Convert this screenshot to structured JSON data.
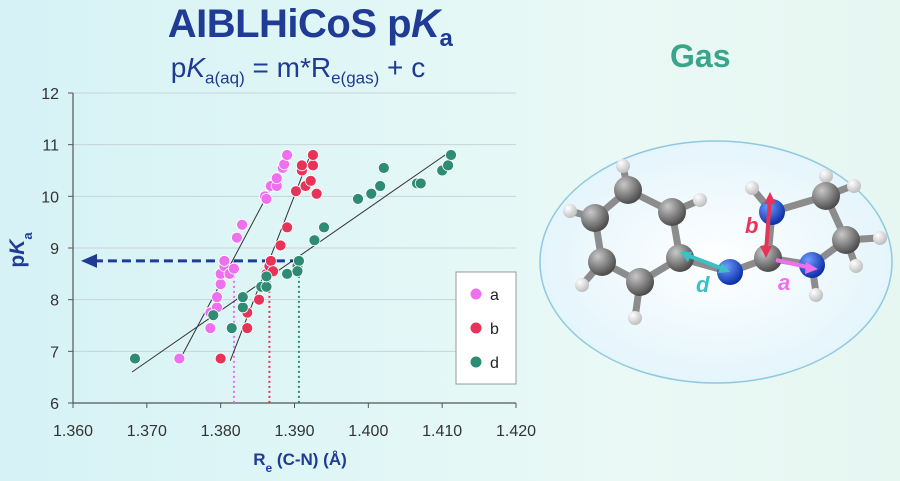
{
  "header": {
    "title_main": "AIBLHiCoS p",
    "title_K": "K",
    "title_sub": "a",
    "eq_p": "p",
    "eq_K": "K",
    "eq_sub1": "a(aq)",
    "eq_mid": " = m*R",
    "eq_sub2": "e(gas)",
    "eq_end": " + c"
  },
  "side_panel": {
    "title": "Gas",
    "bond_labels": {
      "a": "a",
      "b": "b",
      "d": "d"
    }
  },
  "colors": {
    "title": "#1f3b94",
    "a": "#ee70ee",
    "b": "#e83358",
    "d": "#2e8b74",
    "gas": "#3aa58a",
    "arrow": "#1f3b94"
  },
  "chart_data": {
    "type": "scatter",
    "xlabel": "R",
    "xlabel_sub": "e",
    "xlabel_rest": " (C-N) (Å)",
    "ylabel": "p",
    "ylabel_K": "K",
    "ylabel_sub": "a",
    "xlim": [
      1.36,
      1.42
    ],
    "ylim": [
      6,
      12
    ],
    "x_ticks": [
      1.36,
      1.37,
      1.38,
      1.39,
      1.4,
      1.41,
      1.42
    ],
    "x_tick_labels": [
      "1.360",
      "1.370",
      "1.380",
      "1.390",
      "1.400",
      "1.410",
      "1.420"
    ],
    "y_ticks": [
      6,
      7,
      8,
      9,
      10,
      11,
      12
    ],
    "y_tick_labels": [
      "6",
      "7",
      "8",
      "9",
      "10",
      "11",
      "12"
    ],
    "legend_position": "bottom-right",
    "highlight_y": 8.75,
    "drop_x": {
      "a": 1.3818,
      "b": 1.3866,
      "d": 1.3906
    },
    "series": [
      {
        "name": "a",
        "color": "#ee70ee",
        "points": [
          [
            1.3744,
            6.86
          ],
          [
            1.3786,
            7.45
          ],
          [
            1.3786,
            7.75
          ],
          [
            1.3795,
            7.85
          ],
          [
            1.3795,
            8.05
          ],
          [
            1.38,
            8.3
          ],
          [
            1.38,
            8.5
          ],
          [
            1.3805,
            8.65
          ],
          [
            1.3805,
            8.75
          ],
          [
            1.3812,
            8.5
          ],
          [
            1.3818,
            8.6
          ],
          [
            1.3822,
            9.2
          ],
          [
            1.3829,
            9.45
          ],
          [
            1.386,
            10.0
          ],
          [
            1.3862,
            9.95
          ],
          [
            1.3868,
            10.2
          ],
          [
            1.3876,
            10.2
          ],
          [
            1.3876,
            10.35
          ],
          [
            1.3884,
            10.55
          ],
          [
            1.3886,
            10.62
          ],
          [
            1.389,
            10.8
          ]
        ],
        "fit": [
          [
            1.3744,
            6.82
          ],
          [
            1.3894,
            10.85
          ]
        ]
      },
      {
        "name": "b",
        "color": "#e83358",
        "points": [
          [
            1.38,
            6.86
          ],
          [
            1.3836,
            7.45
          ],
          [
            1.3836,
            7.75
          ],
          [
            1.3852,
            8.0
          ],
          [
            1.3857,
            8.25
          ],
          [
            1.3862,
            8.5
          ],
          [
            1.3866,
            8.65
          ],
          [
            1.3868,
            8.75
          ],
          [
            1.3871,
            8.55
          ],
          [
            1.3881,
            9.05
          ],
          [
            1.389,
            9.4
          ],
          [
            1.3902,
            10.1
          ],
          [
            1.391,
            10.5
          ],
          [
            1.391,
            10.6
          ],
          [
            1.3915,
            10.2
          ],
          [
            1.3922,
            10.3
          ],
          [
            1.3925,
            10.6
          ],
          [
            1.3925,
            10.8
          ],
          [
            1.393,
            10.05
          ]
        ],
        "fit": [
          [
            1.3813,
            6.82
          ],
          [
            1.3924,
            10.9
          ]
        ]
      },
      {
        "name": "d",
        "color": "#2e8b74",
        "points": [
          [
            1.3684,
            6.86
          ],
          [
            1.379,
            7.7
          ],
          [
            1.3815,
            7.45
          ],
          [
            1.383,
            7.85
          ],
          [
            1.383,
            8.05
          ],
          [
            1.3855,
            8.25
          ],
          [
            1.3862,
            8.25
          ],
          [
            1.3862,
            8.45
          ],
          [
            1.389,
            8.5
          ],
          [
            1.3904,
            8.65
          ],
          [
            1.3906,
            8.75
          ],
          [
            1.3904,
            8.55
          ],
          [
            1.3927,
            9.15
          ],
          [
            1.394,
            9.4
          ],
          [
            1.3986,
            9.95
          ],
          [
            1.4004,
            10.05
          ],
          [
            1.4016,
            10.2
          ],
          [
            1.4021,
            10.55
          ],
          [
            1.4066,
            10.25
          ],
          [
            1.4071,
            10.25
          ],
          [
            1.41,
            10.5
          ],
          [
            1.4108,
            10.6
          ],
          [
            1.4112,
            10.8
          ]
        ],
        "fit": [
          [
            1.368,
            6.6
          ],
          [
            1.4112,
            10.88
          ]
        ]
      }
    ]
  }
}
